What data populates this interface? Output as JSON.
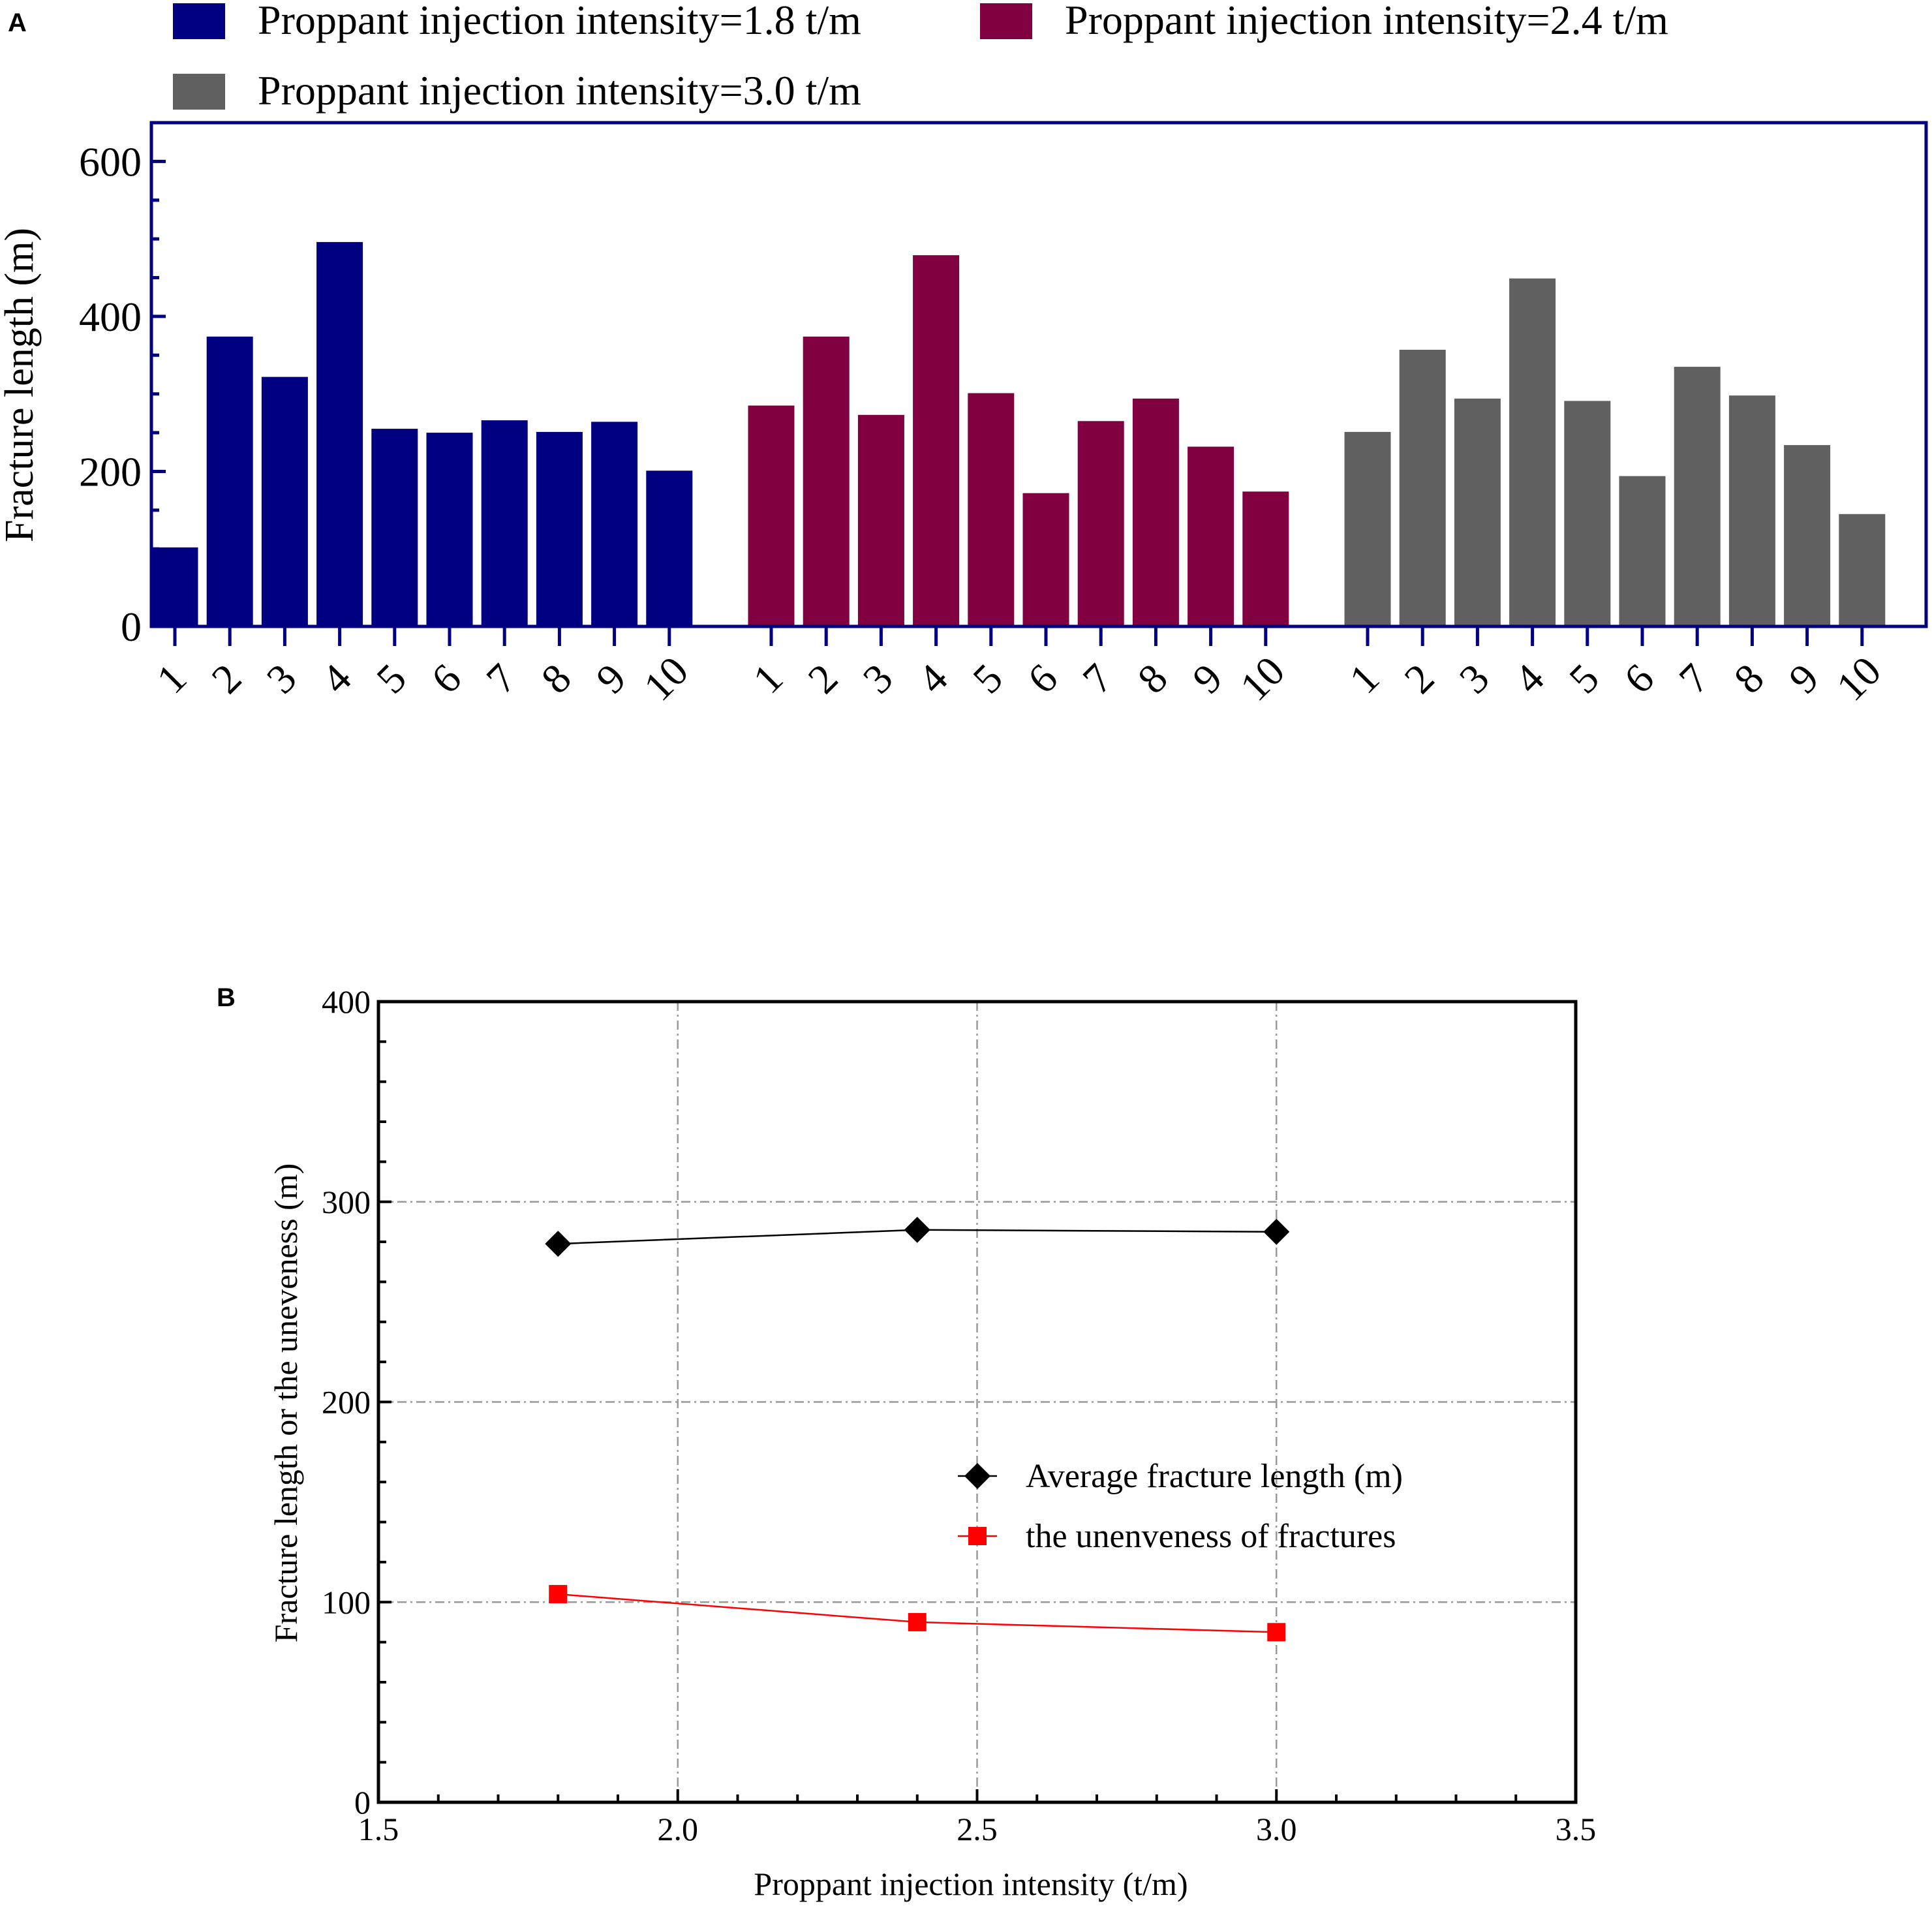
{
  "colors": {
    "series_1_8": "#000080",
    "series_2_4": "#800040",
    "series_3_0": "#606060",
    "panel_a_frame": "#000080",
    "avg_line": "#000000",
    "unevenness_line": "#ff0000",
    "grid": "#999999"
  },
  "chart_data": [
    {
      "panel": "A",
      "type": "bar",
      "title": "",
      "xlabel": "",
      "ylabel": "Fracture length (m)",
      "ylim": [
        0,
        650
      ],
      "yticks": [
        0,
        200,
        400,
        600
      ],
      "categories": [
        "1",
        "2",
        "3",
        "4",
        "5",
        "6",
        "7",
        "8",
        "9",
        "10"
      ],
      "series": [
        {
          "name": "Proppant injection intensity=1.8 t/m",
          "color_key": "series_1_8",
          "values": [
            102,
            374,
            322,
            496,
            255,
            250,
            266,
            251,
            264,
            201
          ]
        },
        {
          "name": "Proppant injection intensity=2.4 t/m",
          "color_key": "series_2_4",
          "values": [
            285,
            374,
            273,
            479,
            301,
            172,
            265,
            294,
            232,
            174
          ]
        },
        {
          "name": "Proppant injection intensity=3.0 t/m",
          "color_key": "series_3_0",
          "values": [
            251,
            357,
            294,
            449,
            291,
            194,
            335,
            298,
            234,
            145
          ]
        }
      ],
      "legend_position": "top",
      "grid": false
    },
    {
      "panel": "B",
      "type": "line",
      "title": "",
      "xlabel": "Proppant injection intensity (t/m)",
      "ylabel": "Fracture length or the uneveness (m)",
      "xlim": [
        1.5,
        3.5
      ],
      "ylim": [
        0,
        400
      ],
      "xticks": [
        "1.5",
        "2.0",
        "2.5",
        "3.0",
        "3.5"
      ],
      "yticks": [
        "0",
        "100",
        "200",
        "300",
        "400"
      ],
      "grid": true,
      "legend_position": "center-right",
      "series": [
        {
          "name": "Average fracture length (m)",
          "marker": "diamond",
          "color_key": "avg_line",
          "x": [
            1.8,
            2.4,
            3.0
          ],
          "y": [
            279,
            286,
            285
          ]
        },
        {
          "name": "the unenveness of fractures",
          "marker": "square",
          "color_key": "unevenness_line",
          "x": [
            1.8,
            2.4,
            3.0
          ],
          "y": [
            104,
            90,
            85
          ]
        }
      ]
    }
  ]
}
